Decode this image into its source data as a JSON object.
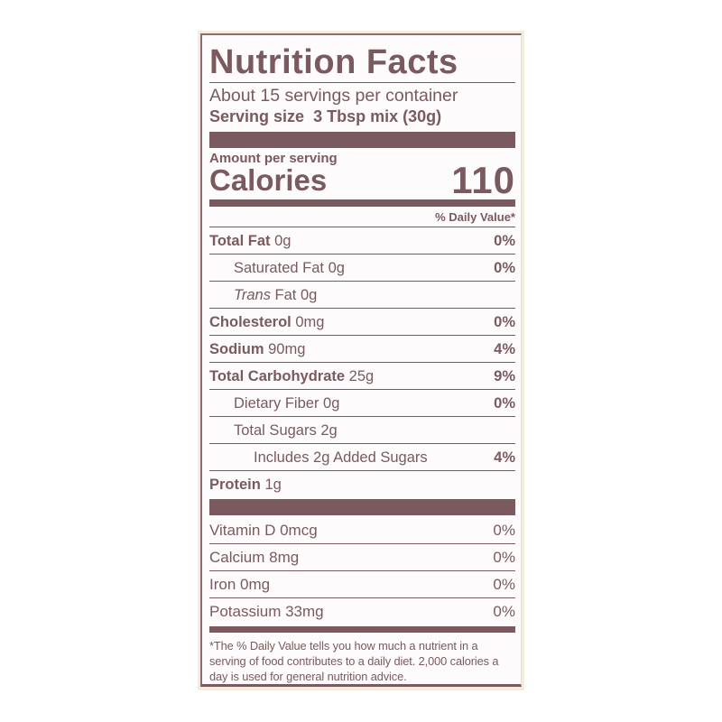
{
  "title": "Nutrition Facts",
  "servings_per_container": "About 15 servings per container",
  "serving_size_label": "Serving size",
  "serving_size_value": "3 Tbsp mix (30g)",
  "amount_per_serving": "Amount per serving",
  "calories_label": "Calories",
  "calories_value": "110",
  "daily_value_header": "% Daily Value*",
  "nutrients": [
    {
      "name": "Total Fat",
      "amount": "0g",
      "dv": "0%",
      "bold": true,
      "indent": 0
    },
    {
      "name": "Saturated Fat",
      "amount": "0g",
      "dv": "0%",
      "bold": false,
      "indent": 1
    },
    {
      "name": "Trans",
      "name_suffix": " Fat",
      "amount": "0g",
      "dv": "",
      "bold": false,
      "indent": 1
    },
    {
      "name": "Cholesterol",
      "amount": "0mg",
      "dv": "0%",
      "bold": true,
      "indent": 0
    },
    {
      "name": "Sodium",
      "amount": "90mg",
      "dv": "4%",
      "bold": true,
      "indent": 0
    },
    {
      "name": "Total Carbohydrate",
      "amount": "25g",
      "dv": "9%",
      "bold": true,
      "indent": 0
    },
    {
      "name": "Dietary Fiber",
      "amount": "0g",
      "dv": "0%",
      "bold": false,
      "indent": 1
    },
    {
      "name": "Total Sugars",
      "amount": "2g",
      "dv": "",
      "bold": false,
      "indent": 1
    },
    {
      "name": "Includes 2g Added Sugars",
      "amount": "",
      "dv": "4%",
      "bold": false,
      "indent": 2
    },
    {
      "name": "Protein",
      "amount": "1g",
      "dv": "",
      "bold": true,
      "indent": 0
    }
  ],
  "vitamins": [
    {
      "text": "Vitamin D 0mcg",
      "dv": "0%"
    },
    {
      "text": "Calcium 8mg",
      "dv": "0%"
    },
    {
      "text": "Iron 0mg",
      "dv": "0%"
    },
    {
      "text": "Potassium 33mg",
      "dv": "0%"
    }
  ],
  "footnote": "*The % Daily Value tells you how much a nutrient in a serving of food contributes to a daily diet. 2,000 calories a day is used for general nutrition advice.",
  "colors": {
    "ink": "#7a5a5e",
    "background": "#fdfbfb"
  }
}
